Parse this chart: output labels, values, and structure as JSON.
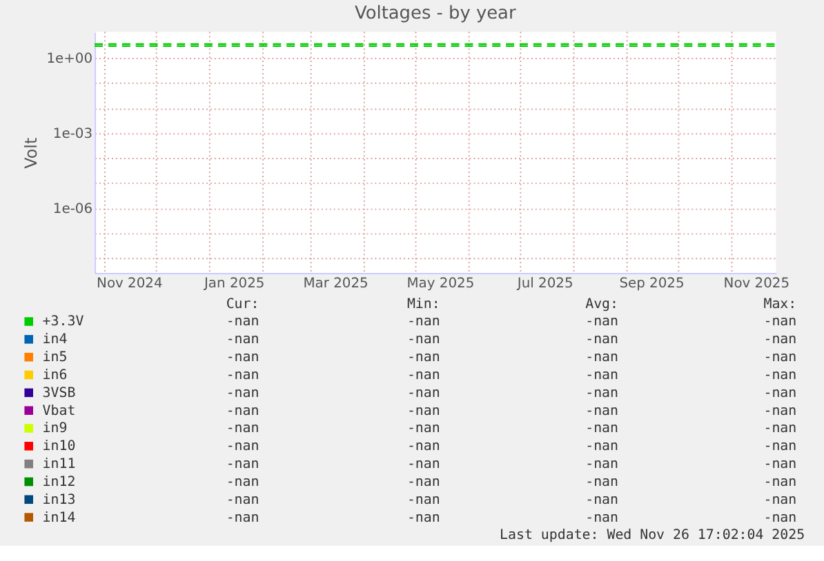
{
  "chart_data": {
    "type": "line",
    "title": "Voltages - by year",
    "ylabel": "Volt",
    "log": true,
    "grid": true,
    "legend": "bottom",
    "xlim": [
      "2024-10-26",
      "2025-11-26T17:02"
    ],
    "xticks": [
      {
        "value": "2024-11-01",
        "label": null
      },
      {
        "value": "2024-11-15",
        "label": "Nov 2024"
      },
      {
        "value": "2024-12-01",
        "label": null
      },
      {
        "value": "2025-01-01",
        "label": null
      },
      {
        "value": "2025-01-15",
        "label": "Jan 2025"
      },
      {
        "value": "2025-02-01",
        "label": null
      },
      {
        "value": "2025-03-01",
        "label": null
      },
      {
        "value": "2025-03-15",
        "label": "Mar 2025"
      },
      {
        "value": "2025-04-01",
        "label": null
      },
      {
        "value": "2025-05-01",
        "label": null
      },
      {
        "value": "2025-05-15",
        "label": "May 2025"
      },
      {
        "value": "2025-06-01",
        "label": null
      },
      {
        "value": "2025-07-01",
        "label": null
      },
      {
        "value": "2025-07-15",
        "label": "Jul 2025"
      },
      {
        "value": "2025-08-01",
        "label": null
      },
      {
        "value": "2025-09-01",
        "label": null
      },
      {
        "value": "2025-09-15",
        "label": "Sep 2025"
      },
      {
        "value": "2025-10-01",
        "label": null
      },
      {
        "value": "2025-11-01",
        "label": null
      },
      {
        "value": "2025-11-15",
        "label": "Nov 2025"
      }
    ],
    "ylim": [
      2.6e-09,
      11
    ],
    "yticks": [
      {
        "value": 1,
        "label": "1e+00"
      },
      {
        "value": 0.1,
        "label": null
      },
      {
        "value": 0.01,
        "label": null
      },
      {
        "value": 0.001,
        "label": "1e-03"
      },
      {
        "value": 0.0001,
        "label": null
      },
      {
        "value": 1e-05,
        "label": null
      },
      {
        "value": 1e-06,
        "label": "1e-06"
      },
      {
        "value": 1e-07,
        "label": null
      },
      {
        "value": 1e-08,
        "label": null
      }
    ],
    "series": [
      {
        "name": "+3.3V",
        "color": "#00cc00",
        "values": [
          null,
          null
        ]
      },
      {
        "name": "in4",
        "color": "#0066b3",
        "values": [
          null,
          null
        ]
      },
      {
        "name": "in5",
        "color": "#ff8000",
        "values": [
          null,
          null
        ]
      },
      {
        "name": "in6",
        "color": "#ffcc00",
        "values": [
          null,
          null
        ]
      },
      {
        "name": "3VSB",
        "color": "#330099",
        "values": [
          null,
          null
        ]
      },
      {
        "name": "Vbat",
        "color": "#990099",
        "values": [
          null,
          null
        ]
      },
      {
        "name": "in9",
        "color": "#ccff00",
        "values": [
          null,
          null
        ]
      },
      {
        "name": "in10",
        "color": "#ff0000",
        "values": [
          null,
          null
        ]
      },
      {
        "name": "in11",
        "color": "#808080",
        "values": [
          null,
          null
        ]
      },
      {
        "name": "in12",
        "color": "#008f00",
        "values": [
          null,
          null
        ]
      },
      {
        "name": "in13",
        "color": "#00487d",
        "values": [
          null,
          null
        ]
      },
      {
        "name": "in14",
        "color": "#b35a00",
        "values": [
          null,
          null
        ]
      },
      {
        "color": "#00cc00",
        "line_style": "dashed",
        "x": [
          "2024-10-26",
          "2025-11-26T17:02"
        ],
        "values": [
          3.6,
          3.6
        ]
      },
      {
        "color": "#00cc00",
        "line_style": "dashed",
        "x": [
          "2024-10-26",
          "2025-11-26T17:02"
        ],
        "values": [
          3.0,
          3.0
        ]
      }
    ],
    "annotations": [
      "Cur:",
      "Min:",
      "Avg:",
      "Max:",
      "-nan",
      "-nan",
      "-nan",
      "-nan",
      "-nan",
      "-nan",
      "-nan",
      "-nan",
      "-nan",
      "-nan",
      "-nan",
      "-nan",
      "-nan",
      "-nan",
      "-nan",
      "-nan",
      "-nan",
      "-nan",
      "-nan",
      "-nan",
      "-nan",
      "-nan",
      "-nan",
      "-nan",
      "-nan",
      "-nan",
      "-nan",
      "-nan",
      "-nan",
      "-nan",
      "-nan",
      "-nan",
      "-nan",
      "-nan",
      "-nan",
      "-nan",
      "-nan",
      "-nan",
      "-nan",
      "-nan",
      "-nan",
      "-nan",
      "-nan",
      "-nan",
      "-nan",
      "-nan",
      "-nan",
      "-nan",
      "Last update: Wed Nov 26 17:02:04 2025"
    ]
  }
}
